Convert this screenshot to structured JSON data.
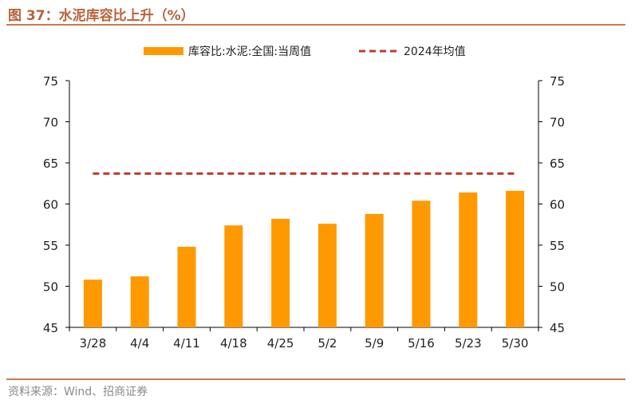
{
  "figure": {
    "title": "图 37：水泥库容比上升（%）",
    "source": "资料来源：Wind、招商证券"
  },
  "colors": {
    "bar": "#FF9900",
    "avg_line": "#C0392B",
    "title": "#B8623A",
    "rule": "#C97A4F",
    "source": "#8A8A8A"
  },
  "chart_data": {
    "type": "bar",
    "categories": [
      "3/28",
      "4/4",
      "4/11",
      "4/18",
      "4/25",
      "5/2",
      "5/9",
      "5/16",
      "5/23",
      "5/30"
    ],
    "series": [
      {
        "name": "库容比:水泥:全国:当周值",
        "type": "bar",
        "values": [
          50.8,
          51.2,
          54.8,
          57.4,
          58.2,
          57.6,
          58.8,
          60.4,
          61.4,
          61.6
        ]
      },
      {
        "name": "2024年均值",
        "type": "line",
        "style": "dashed",
        "values": [
          63.7,
          63.7,
          63.7,
          63.7,
          63.7,
          63.7,
          63.7,
          63.7,
          63.7,
          63.7
        ]
      }
    ],
    "ylim": [
      45,
      75
    ],
    "yticks": [
      45,
      50,
      55,
      60,
      65,
      70,
      75
    ],
    "y2lim": [
      45,
      75
    ],
    "y2ticks": [
      45,
      50,
      55,
      60,
      65,
      70,
      75
    ],
    "xlabel": "",
    "ylabel": "",
    "grid": false,
    "legend_position": "top"
  }
}
